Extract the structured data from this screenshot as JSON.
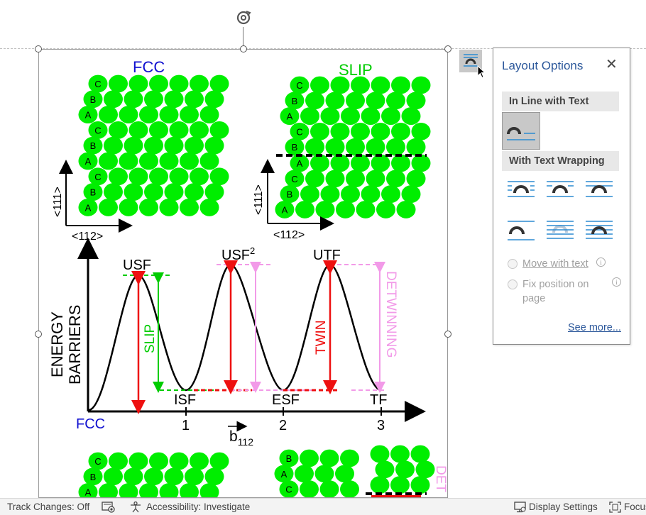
{
  "figure": {
    "panels": {
      "top_left_title": "FCC",
      "top_right_title": "SLIP",
      "stack_fcc": [
        "C",
        "B",
        "A",
        "C",
        "B",
        "A",
        "C",
        "B",
        "A"
      ],
      "stack_slip": [
        "C",
        "B",
        "A",
        "C",
        "B",
        "A",
        "C",
        "B",
        "A"
      ],
      "stack_bottom_left": [
        "C",
        "B",
        "A"
      ],
      "stack_bottom_right": [
        "B",
        "A",
        "C"
      ],
      "vertical_axis_label": "<111>",
      "horizontal_axis_label": "<112>",
      "bottom_right_partial_label": "DET"
    },
    "energy_plot": {
      "y_axis_label_line1": "ENERGY",
      "y_axis_label_line2": "BARRIERS",
      "peak_labels": [
        "USF",
        "USF",
        "UTF"
      ],
      "peak2_superscript": "2",
      "valley_labels": [
        "ISF",
        "ESF",
        "TF"
      ],
      "origin_label": "FCC",
      "x_ticks": [
        "1",
        "2",
        "3"
      ],
      "x_axis_label": "b",
      "x_axis_subscript": "112",
      "slip_label": "SLIP",
      "twin_label": "TWIN",
      "detwinning_label": "DETWINNING"
    }
  },
  "layout_options": {
    "title": "Layout Options",
    "close_icon": "close-icon",
    "in_line_section": "In Line with Text",
    "wrapping_section": "With Text Wrapping",
    "move_with_text": "Move with text",
    "fix_position_line1": "Fix position on",
    "fix_position_line2": "page",
    "see_more": "See more..."
  },
  "status_bar": {
    "track_changes": "Track Changes: Off",
    "accessibility": "Accessibility: Investigate",
    "display_settings": "Display Settings",
    "focus": "Focus"
  },
  "colors": {
    "atom_green": "#00ee00",
    "fcc_blue": "#1010d0",
    "slip_green": "#00cc00",
    "twin_red": "#ee1010",
    "detwin_pink": "#f29ae8",
    "word_blue": "#2b579a"
  }
}
